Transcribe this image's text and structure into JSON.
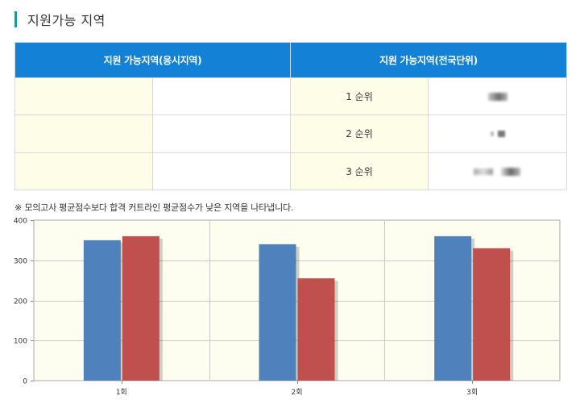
{
  "section": {
    "title": "지원가능 지역"
  },
  "table": {
    "headers": [
      "지원 가능지역(응시지역)",
      "지원 가능지역(전국단위)"
    ],
    "rows": [
      {
        "rank": "1 순위"
      },
      {
        "rank": "2 순위"
      },
      {
        "rank": "3 순위"
      }
    ]
  },
  "note": "※ 모의고사 평균점수보다 합격 커트라인 평균점수가 낮은 지역을 나타냅니다.",
  "chart_data": {
    "type": "bar",
    "categories": [
      "1회",
      "2회",
      "3회"
    ],
    "series": [
      {
        "color": "#4f81bd",
        "values": [
          350,
          340,
          360
        ]
      },
      {
        "color": "#c0504d",
        "values": [
          360,
          255,
          330
        ]
      }
    ],
    "yticks": [
      0,
      100,
      200,
      300,
      400
    ],
    "ylim": [
      0,
      400
    ],
    "grid": true,
    "background": "#fdfdf0"
  }
}
